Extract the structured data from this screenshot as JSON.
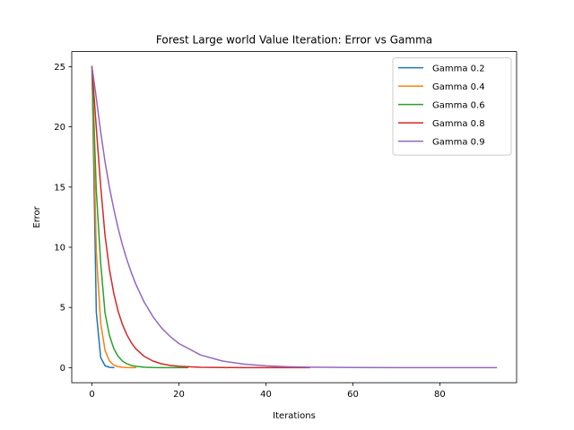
{
  "chart_data": {
    "type": "line",
    "title": "Forest Large world Value Iteration: Error vs Gamma",
    "xlabel": "Iterations",
    "ylabel": "Error",
    "xlim": [
      -4.65,
      97.65
    ],
    "ylim": [
      -1.25,
      26.25
    ],
    "xticks": [
      0,
      20,
      40,
      60,
      80
    ],
    "yticks": [
      0,
      5,
      10,
      15,
      20,
      25
    ],
    "grid": false,
    "legend_position": "upper right",
    "series": [
      {
        "name": "Gamma 0.2",
        "color": "#1f77b4",
        "x": [
          0,
          1,
          2,
          3,
          4,
          5
        ],
        "y": [
          25,
          4.6,
          0.85,
          0.16,
          0.03,
          0.006
        ]
      },
      {
        "name": "Gamma 0.4",
        "color": "#ff7f0e",
        "x": [
          0,
          1,
          2,
          3,
          4,
          5,
          6,
          7,
          8,
          9,
          10
        ],
        "y": [
          25,
          9.6,
          3.7,
          1.45,
          0.56,
          0.22,
          0.085,
          0.033,
          0.013,
          0.005,
          0.002
        ]
      },
      {
        "name": "Gamma 0.6",
        "color": "#2ca02c",
        "x": [
          0,
          1,
          2,
          3,
          4,
          5,
          6,
          7,
          8,
          9,
          10,
          12,
          14,
          16,
          18,
          20,
          22
        ],
        "y": [
          25,
          14.7,
          8.7,
          4.55,
          2.7,
          1.6,
          0.94,
          0.55,
          0.33,
          0.19,
          0.11,
          0.04,
          0.014,
          0.005,
          0.002,
          0.001,
          0.0
        ]
      },
      {
        "name": "Gamma 0.8",
        "color": "#d62728",
        "x": [
          0,
          1,
          2,
          3,
          4,
          5,
          6,
          7,
          8,
          9,
          10,
          12,
          14,
          16,
          18,
          20,
          25,
          30,
          35,
          40,
          45,
          50
        ],
        "y": [
          25,
          19.9,
          15.1,
          11.0,
          8.2,
          6.2,
          4.7,
          3.6,
          2.75,
          2.1,
          1.6,
          0.94,
          0.55,
          0.32,
          0.19,
          0.11,
          0.03,
          0.008,
          0.002,
          0.0006,
          0.0002,
          0.0
        ]
      },
      {
        "name": "Gamma 0.9",
        "color": "#9467bd",
        "x": [
          0,
          1,
          2,
          3,
          4,
          5,
          6,
          7,
          8,
          9,
          10,
          12,
          14,
          16,
          18,
          20,
          25,
          30,
          35,
          40,
          45,
          50,
          60,
          70,
          80,
          93
        ],
        "y": [
          25,
          22.4,
          19.6,
          17.1,
          15.0,
          13.2,
          11.6,
          10.2,
          9.0,
          7.95,
          7.0,
          5.45,
          4.25,
          3.3,
          2.58,
          2.0,
          1.05,
          0.55,
          0.29,
          0.15,
          0.08,
          0.04,
          0.011,
          0.003,
          0.001,
          0.0
        ]
      }
    ]
  }
}
